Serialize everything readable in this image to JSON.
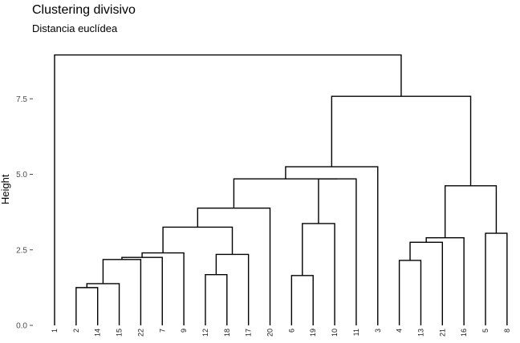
{
  "chart_data": {
    "type": "dendrogram",
    "title": "Clustering divisivo",
    "subtitle": "Distancia euclídea",
    "ylabel": "Height",
    "ylim": [
      0,
      9
    ],
    "yticks": [
      {
        "value": 0,
        "label": "0.0"
      },
      {
        "value": 2.5,
        "label": "2.5"
      },
      {
        "value": 5,
        "label": "5.0"
      },
      {
        "value": 7.5,
        "label": "7.5"
      }
    ],
    "leaves": [
      "1",
      "2",
      "14",
      "15",
      "22",
      "7",
      "9",
      "12",
      "18",
      "17",
      "20",
      "6",
      "19",
      "10",
      "11",
      "3",
      "4",
      "13",
      "21",
      "16",
      "5",
      "8"
    ],
    "merges": [
      {
        "id": "m1",
        "children": [
          "2",
          "14"
        ],
        "height": 1.25
      },
      {
        "id": "m2",
        "children": [
          "m1",
          "15"
        ],
        "height": 1.38
      },
      {
        "id": "m3",
        "children": [
          "m2",
          "22"
        ],
        "height": 2.18
      },
      {
        "id": "m4",
        "children": [
          "m3",
          "7"
        ],
        "height": 2.25
      },
      {
        "id": "m5",
        "children": [
          "m4",
          "9"
        ],
        "height": 2.4
      },
      {
        "id": "m6",
        "children": [
          "12",
          "18"
        ],
        "height": 1.68
      },
      {
        "id": "m7",
        "children": [
          "m6",
          "17"
        ],
        "height": 2.35
      },
      {
        "id": "m8",
        "children": [
          "m5",
          "m7"
        ],
        "height": 3.25
      },
      {
        "id": "m9",
        "children": [
          "m8",
          "20"
        ],
        "height": 3.88
      },
      {
        "id": "m10",
        "children": [
          "6",
          "19"
        ],
        "height": 1.65
      },
      {
        "id": "m11",
        "children": [
          "m10",
          "10"
        ],
        "height": 3.37
      },
      {
        "id": "m12",
        "children": [
          "m11",
          "11"
        ],
        "height": 4.85
      },
      {
        "id": "m13",
        "children": [
          "m9",
          "m12"
        ],
        "height": 4.85
      },
      {
        "id": "m14",
        "children": [
          "m13",
          "3"
        ],
        "height": 5.25
      },
      {
        "id": "m15",
        "children": [
          "4",
          "13"
        ],
        "height": 2.15
      },
      {
        "id": "m16",
        "children": [
          "m15",
          "21"
        ],
        "height": 2.75
      },
      {
        "id": "m17",
        "children": [
          "m16",
          "16"
        ],
        "height": 2.9
      },
      {
        "id": "m18",
        "children": [
          "5",
          "8"
        ],
        "height": 3.05
      },
      {
        "id": "m19",
        "children": [
          "m17",
          "m18"
        ],
        "height": 4.62
      },
      {
        "id": "m20",
        "children": [
          "m14",
          "m19"
        ],
        "height": 7.58
      },
      {
        "id": "m21",
        "children": [
          "1",
          "m20"
        ],
        "height": 8.95
      }
    ]
  }
}
